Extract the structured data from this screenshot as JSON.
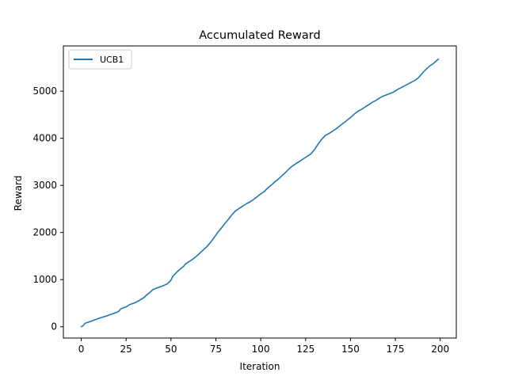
{
  "chart_data": {
    "type": "line",
    "title": "Accumulated Reward",
    "xlabel": "Iteration",
    "ylabel": "Reward",
    "xlim": [
      -9.95,
      208.95
    ],
    "ylim": [
      -240,
      5960
    ],
    "xticks": [
      0,
      25,
      50,
      75,
      100,
      125,
      150,
      175,
      200
    ],
    "yticks": [
      0,
      1000,
      2000,
      3000,
      4000,
      5000
    ],
    "grid": false,
    "legend_position": "top-left",
    "colors": {
      "series": "#1f77b4"
    },
    "series": [
      {
        "name": "UCB1",
        "x": [
          0,
          1,
          2,
          5,
          10,
          15,
          20,
          21,
          22,
          25,
          27,
          30,
          32,
          35,
          36,
          38,
          40,
          42,
          45,
          48,
          50,
          51,
          53,
          55,
          57,
          58,
          60,
          62,
          64,
          66,
          68,
          70,
          72,
          74,
          76,
          78,
          80,
          82,
          84,
          86,
          88,
          90,
          92,
          94,
          96,
          98,
          100,
          102,
          104,
          106,
          108,
          110,
          112,
          114,
          116,
          118,
          120,
          122,
          124,
          126,
          128,
          130,
          132,
          134,
          136,
          138,
          140,
          142,
          144,
          146,
          148,
          150,
          152,
          154,
          156,
          158,
          160,
          162,
          164,
          166,
          168,
          170,
          172,
          174,
          176,
          178,
          180,
          182,
          184,
          186,
          188,
          190,
          192,
          194,
          196,
          198,
          199
        ],
        "y": [
          0,
          20,
          70,
          110,
          180,
          240,
          310,
          330,
          380,
          420,
          470,
          510,
          550,
          620,
          660,
          720,
          790,
          820,
          860,
          910,
          990,
          1070,
          1150,
          1220,
          1280,
          1330,
          1380,
          1430,
          1490,
          1560,
          1630,
          1700,
          1790,
          1890,
          2000,
          2090,
          2190,
          2280,
          2380,
          2460,
          2510,
          2560,
          2610,
          2650,
          2700,
          2760,
          2820,
          2870,
          2950,
          3010,
          3080,
          3140,
          3210,
          3280,
          3360,
          3420,
          3470,
          3520,
          3570,
          3620,
          3670,
          3760,
          3880,
          3980,
          4060,
          4100,
          4150,
          4200,
          4260,
          4320,
          4380,
          4440,
          4510,
          4570,
          4610,
          4660,
          4710,
          4760,
          4800,
          4850,
          4890,
          4920,
          4950,
          4980,
          5030,
          5070,
          5110,
          5150,
          5190,
          5230,
          5290,
          5380,
          5460,
          5530,
          5580,
          5650,
          5680
        ]
      }
    ]
  }
}
